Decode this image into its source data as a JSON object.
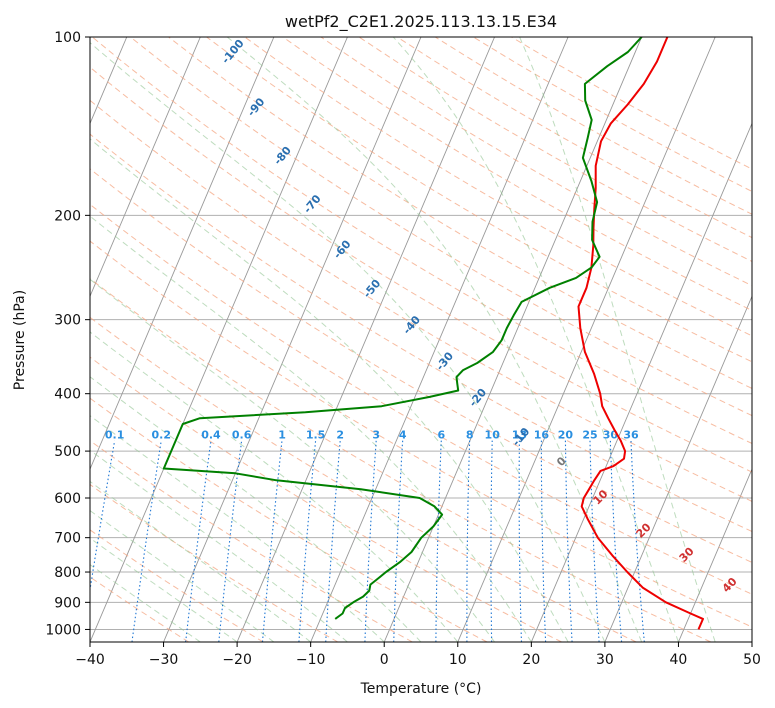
{
  "chart_data": {
    "type": "line",
    "title": "wetPf2_C2E1.2025.113.13.15.E34",
    "xlabel": "Temperature (°C)",
    "ylabel": "Pressure (hPa)",
    "xlim": [
      -40,
      50
    ],
    "ylim": [
      1050,
      100
    ],
    "y_scale": "log",
    "grid": true,
    "x_ticks": [
      -40,
      -30,
      -20,
      -10,
      0,
      10,
      20,
      30,
      40,
      50
    ],
    "x_tick_labels": [
      "−40",
      "−30",
      "−20",
      "−10",
      "0",
      "10",
      "20",
      "30",
      "40",
      "50"
    ],
    "y_ticks": [
      100,
      200,
      300,
      400,
      500,
      600,
      700,
      800,
      900,
      1000
    ],
    "y_tick_labels": [
      "100",
      "200",
      "300",
      "400",
      "500",
      "600",
      "700",
      "800",
      "900",
      "1000"
    ],
    "dry_adiabat_labels": [
      "-100",
      "-90",
      "-80",
      "-70",
      "-60",
      "-50",
      "-40",
      "-30",
      "-20",
      "-10"
    ],
    "mixing_ratio_labels": [
      "0.1",
      "0.2",
      "0.4",
      "0.6",
      "1",
      "1.5",
      "2",
      "3",
      "4",
      "6",
      "8",
      "10",
      "13",
      "16",
      "20",
      "25",
      "30",
      "36"
    ],
    "moist_adiabat_labels": [
      "0",
      "10",
      "20",
      "30",
      "40"
    ],
    "colors": {
      "temperature": "#ee0000",
      "dewpoint": "#008000",
      "isotherm": "#999999",
      "dry_adiabat": "#f4a582",
      "moist_adiabat": "#92c592",
      "mixing_ratio": "#1f77d4"
    },
    "series": [
      {
        "points": [
          [
            1000,
            42
          ],
          [
            960,
            42
          ],
          [
            940,
            40
          ],
          [
            900,
            36
          ],
          [
            850,
            32
          ],
          [
            800,
            29
          ],
          [
            750,
            26
          ],
          [
            700,
            23
          ],
          [
            650,
            20.5
          ],
          [
            620,
            19
          ],
          [
            600,
            18.8
          ],
          [
            580,
            19
          ],
          [
            560,
            19.2
          ],
          [
            540,
            19.5
          ],
          [
            530,
            21
          ],
          [
            515,
            22
          ],
          [
            500,
            21.7
          ],
          [
            480,
            20.5
          ],
          [
            460,
            19
          ],
          [
            440,
            17.5
          ],
          [
            420,
            16
          ],
          [
            400,
            15
          ],
          [
            370,
            13
          ],
          [
            340,
            10.5
          ],
          [
            310,
            8.5
          ],
          [
            285,
            7
          ],
          [
            265,
            7
          ],
          [
            245,
            6.5
          ],
          [
            225,
            5.5
          ],
          [
            210,
            4.5
          ],
          [
            195,
            3.5
          ],
          [
            180,
            2.5
          ],
          [
            165,
            1.2
          ],
          [
            150,
            0.5
          ],
          [
            140,
            0.8
          ],
          [
            130,
            2
          ],
          [
            120,
            3
          ],
          [
            110,
            3.5
          ],
          [
            100,
            3.5
          ]
        ]
      },
      {
        "points": [
          [
            960,
            -8
          ],
          [
            940,
            -7.3
          ],
          [
            920,
            -7.3
          ],
          [
            900,
            -6.5
          ],
          [
            880,
            -5.5
          ],
          [
            860,
            -5
          ],
          [
            840,
            -5.2
          ],
          [
            820,
            -4.5
          ],
          [
            800,
            -3.8
          ],
          [
            770,
            -2.5
          ],
          [
            740,
            -1.5
          ],
          [
            700,
            -1
          ],
          [
            670,
            0
          ],
          [
            640,
            0.5
          ],
          [
            620,
            -1
          ],
          [
            600,
            -3.5
          ],
          [
            580,
            -12
          ],
          [
            560,
            -24
          ],
          [
            545,
            -30
          ],
          [
            535,
            -40
          ],
          [
            450,
            -40
          ],
          [
            440,
            -38
          ],
          [
            430,
            -24
          ],
          [
            420,
            -14
          ],
          [
            405,
            -8
          ],
          [
            395,
            -4.5
          ],
          [
            385,
            -5
          ],
          [
            375,
            -5.5
          ],
          [
            365,
            -5
          ],
          [
            355,
            -3.5
          ],
          [
            340,
            -2
          ],
          [
            325,
            -1.5
          ],
          [
            310,
            -1.5
          ],
          [
            295,
            -1.3
          ],
          [
            280,
            -1
          ],
          [
            265,
            2
          ],
          [
            255,
            5
          ],
          [
            245,
            6.5
          ],
          [
            235,
            7
          ],
          [
            220,
            5
          ],
          [
            205,
            4
          ],
          [
            190,
            3.5
          ],
          [
            175,
            1.5
          ],
          [
            160,
            -1
          ],
          [
            148,
            -1.5
          ],
          [
            138,
            -2
          ],
          [
            128,
            -4
          ],
          [
            120,
            -5
          ],
          [
            112,
            -3
          ],
          [
            106,
            -1
          ],
          [
            100,
            0
          ]
        ]
      }
    ]
  }
}
